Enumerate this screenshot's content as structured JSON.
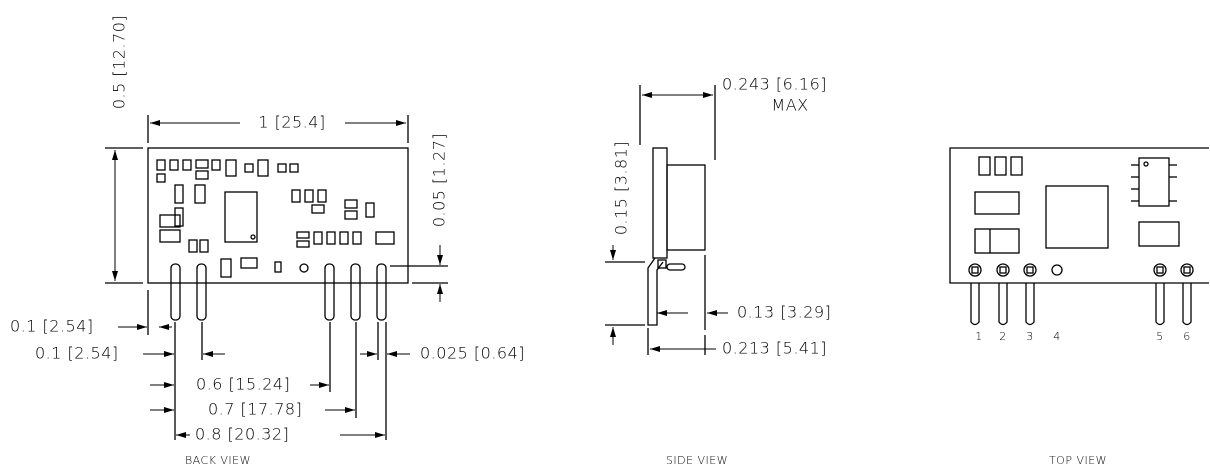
{
  "back_view": {
    "label": "BACK VIEW",
    "height": "0.5 [12.70]",
    "width": "1 [25.4]",
    "pin_standoff": "0.05 [1.27]",
    "pin_pitch_a": "0.1 [2.54]",
    "pin_pitch_b": "0.1 [2.54]",
    "pin_width": "0.025 [0.64]",
    "span_1": "0.6 [15.24]",
    "span_2": "0.7 [17.78]",
    "span_3": "0.8 [20.32]"
  },
  "side_view": {
    "label": "SIDE VIEW",
    "thickness": "0.243 [6.16]",
    "thickness_note": "MAX",
    "pin_length": "0.15 [3.81]",
    "offset": "0.13 [3.29]",
    "depth": "0.213 [5.41]"
  },
  "top_view": {
    "label": "TOP VIEW",
    "pins": [
      "1",
      "2",
      "3",
      "4",
      "5",
      "6"
    ]
  }
}
